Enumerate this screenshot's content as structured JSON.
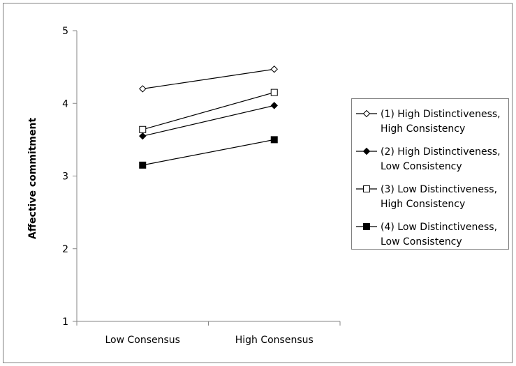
{
  "chart_data": {
    "type": "line",
    "title": "",
    "xlabel": "",
    "ylabel": "Affective commitment",
    "ylim": [
      1,
      5
    ],
    "yticks": [
      "1",
      "2",
      "3",
      "4",
      "5"
    ],
    "categories": [
      "Low Consensus",
      "High Consensus"
    ],
    "grid": false,
    "legend_position": "right",
    "series": [
      {
        "name": "(1) High Distinctiveness, High Consistency",
        "legend_lines": [
          "(1) High Distinctiveness,",
          "High Consistency"
        ],
        "values": [
          4.2,
          4.47
        ],
        "marker": "diamond-open",
        "color": "#000000"
      },
      {
        "name": "(2) High Distinctiveness, Low Consistency",
        "legend_lines": [
          "(2) High Distinctiveness,",
          "Low Consistency"
        ],
        "values": [
          3.55,
          3.97
        ],
        "marker": "diamond-filled",
        "color": "#000000"
      },
      {
        "name": "(3) Low Distinctiveness, High Consistency",
        "legend_lines": [
          "(3) Low Distinctiveness,",
          "High Consistency"
        ],
        "values": [
          3.64,
          4.15
        ],
        "marker": "square-open",
        "color": "#000000"
      },
      {
        "name": "(4) Low Distinctiveness, Low Consistency",
        "legend_lines": [
          "(4) Low Distinctiveness,",
          "Low Consistency"
        ],
        "values": [
          3.15,
          3.5
        ],
        "marker": "square-filled",
        "color": "#000000"
      }
    ]
  }
}
